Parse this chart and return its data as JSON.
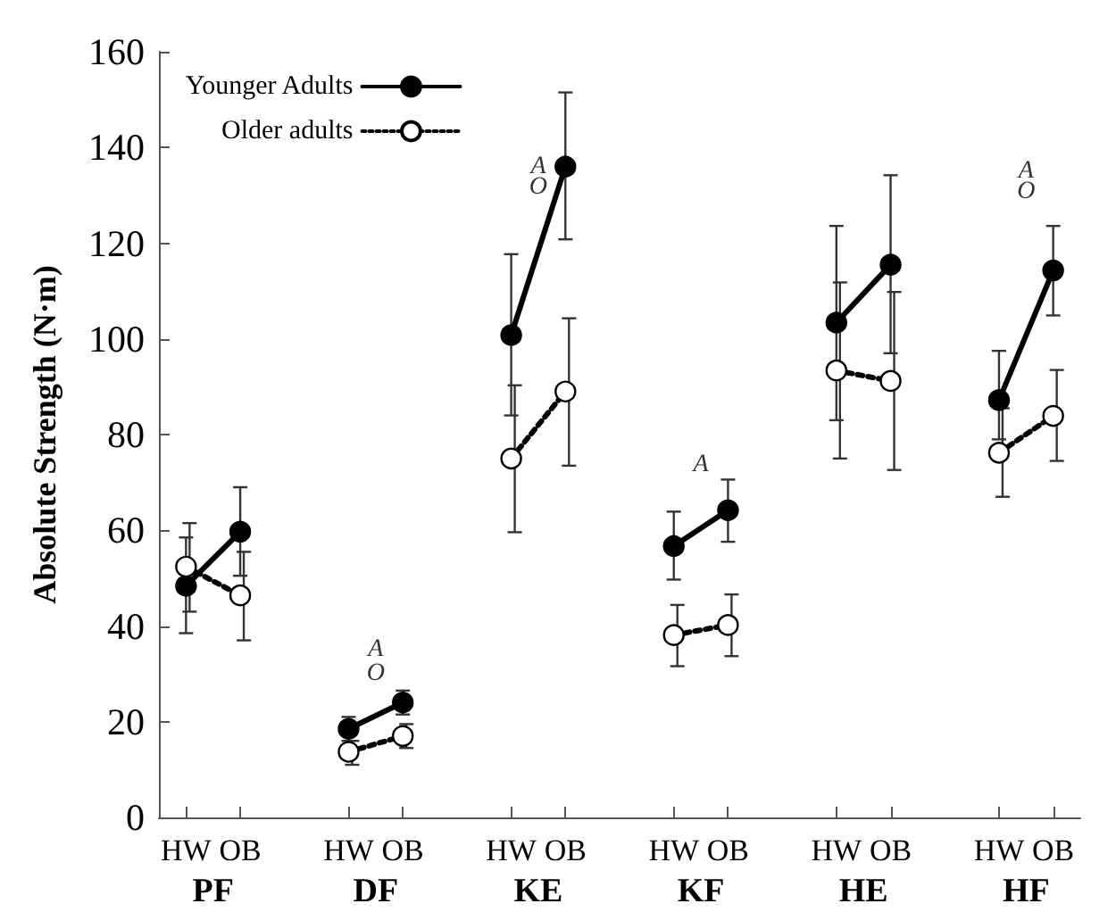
{
  "chart_data": {
    "type": "line",
    "ylabel": "Absolute Strength (N·m)",
    "categories": [
      "HW",
      "OB",
      null,
      "HW",
      "OB",
      null,
      "HW",
      "OB",
      null,
      "HW",
      "OB",
      null,
      "HW",
      "OB",
      null,
      "HW",
      "OB"
    ],
    "series": [
      {
        "name": "Younger Adults",
        "color": "#000000",
        "line_style": "solid",
        "marker": "circle",
        "values": [
          48.4,
          59.7,
          null,
          18.5,
          24,
          null,
          100.8,
          136,
          null,
          56.7,
          64.2,
          null,
          103.4,
          115.5,
          null,
          87.2,
          114.3
        ],
        "errors": [
          [
            38.5,
            58.5
          ],
          [
            50.5,
            69
          ],
          null,
          [
            16,
            21
          ],
          [
            21.5,
            26.5
          ],
          null,
          [
            84,
            117.7
          ],
          [
            120.8,
            151.5
          ],
          null,
          [
            49.7,
            63.9
          ],
          [
            57.6,
            70.6
          ],
          null,
          [
            83,
            123.6
          ],
          [
            97,
            134.2
          ],
          null,
          [
            79,
            97.5
          ],
          [
            104.9,
            123.6
          ]
        ]
      },
      {
        "name": "Older adults",
        "color": "#000000",
        "line_style": "dotted",
        "marker": "circle",
        "values": [
          52.4,
          46.4,
          null,
          13.7,
          17,
          null,
          75,
          89,
          null,
          38.1,
          40.2,
          null,
          93.4,
          91.2,
          null,
          76.2,
          83.9
        ],
        "errors": [
          [
            43,
            61.5
          ],
          [
            37,
            55.5
          ],
          null,
          [
            11,
            16
          ],
          [
            14.5,
            19.5
          ],
          null,
          [
            59.6,
            90.3
          ],
          [
            73.5,
            104.3
          ],
          null,
          [
            31.6,
            44.4
          ],
          [
            33.7,
            46.6
          ],
          null,
          [
            75,
            111.8
          ],
          [
            72.6,
            109.8
          ],
          null,
          [
            67,
            85.5
          ],
          [
            74.5,
            93.5
          ]
        ]
      }
    ],
    "annotations": [
      "PF",
      "DF",
      "KE",
      "KF",
      "HE",
      "HF",
      "A",
      "O",
      "A",
      "O",
      "A",
      "A",
      "O"
    ],
    "ylim": [
      0,
      160
    ],
    "yticks": [
      0,
      20,
      40,
      60,
      80,
      100,
      120,
      140,
      160
    ],
    "grid": false,
    "legend": "top left"
  }
}
